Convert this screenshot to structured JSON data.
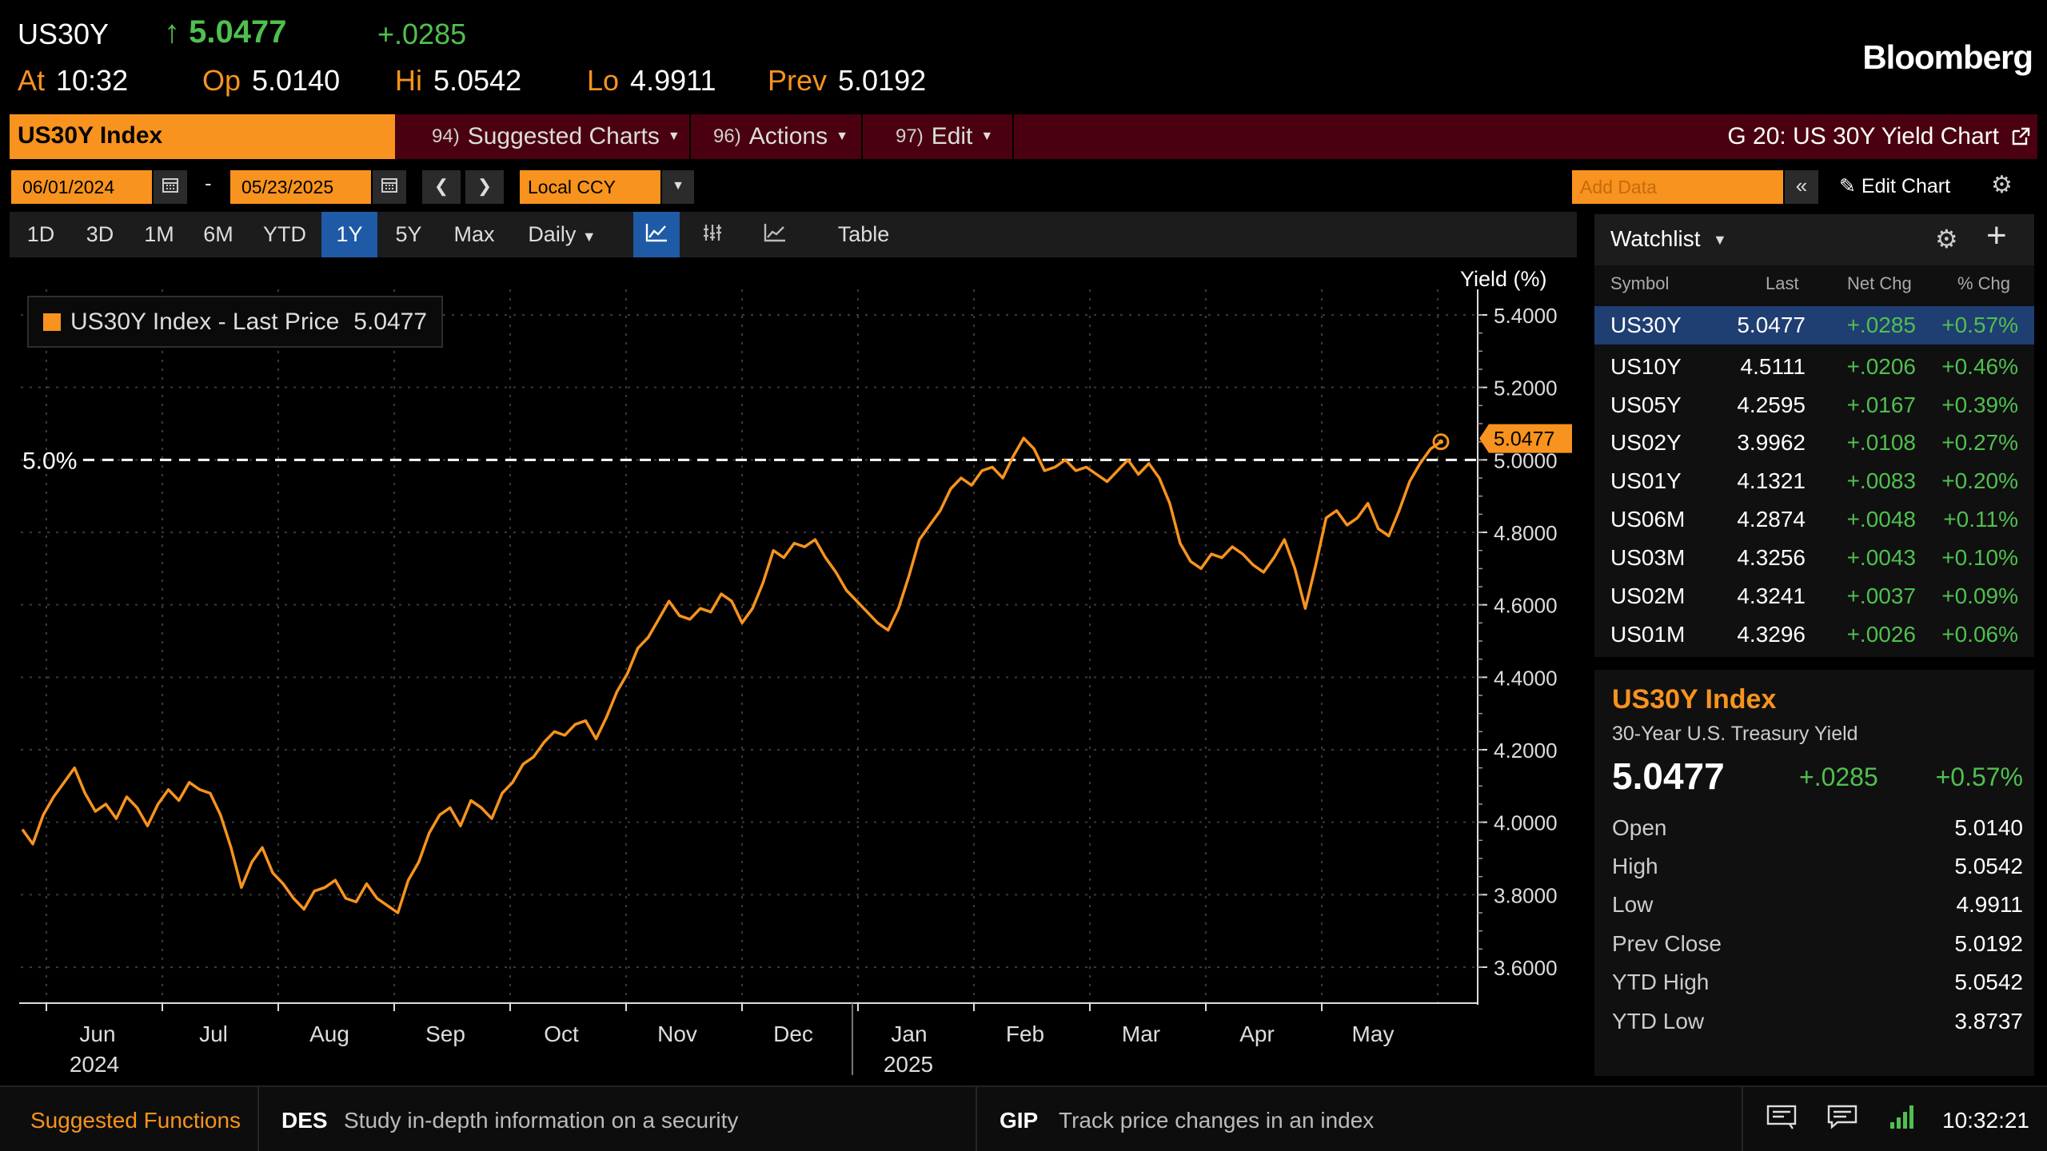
{
  "header": {
    "ticker": "US30Y",
    "price": "5.0477",
    "change": "+.0285",
    "at_label": "At",
    "at_value": "10:32",
    "op_label": "Op",
    "op_value": "5.0140",
    "hi_label": "Hi",
    "hi_value": "5.0542",
    "lo_label": "Lo",
    "lo_value": "4.9911",
    "prev_label": "Prev",
    "prev_value": "5.0192",
    "brand": "Bloomberg"
  },
  "function_bar": {
    "title": "US30Y Index",
    "suggested_num": "94)",
    "suggested_label": "Suggested Charts",
    "actions_num": "96)",
    "actions_label": "Actions",
    "edit_num": "97)",
    "edit_label": "Edit",
    "right_label": "G 20: US 30Y Yield Chart"
  },
  "controls": {
    "start_date": "06/01/2024",
    "end_date": "05/23/2025",
    "dash": "-",
    "currency": "Local CCY",
    "add_data_placeholder": "Add Data",
    "edit_chart": "Edit Chart"
  },
  "periods": [
    "1D",
    "3D",
    "1M",
    "6M",
    "YTD",
    "1Y",
    "5Y",
    "Max"
  ],
  "active_period": "1Y",
  "frequency": "Daily",
  "table_label": "Table",
  "legend": {
    "label": "US30Y Index - Last Price",
    "value": "5.0477"
  },
  "chart_data": {
    "type": "line",
    "title": "",
    "ylabel": "Yield (%)",
    "ylim": [
      3.5,
      5.45
    ],
    "yticks": [
      "5.4000",
      "5.2000",
      "5.0000",
      "4.8000",
      "4.6000",
      "4.4000",
      "4.2000",
      "4.0000",
      "3.8000",
      "3.6000"
    ],
    "months": [
      "Jun",
      "Jul",
      "Aug",
      "Sep",
      "Oct",
      "Nov",
      "Dec",
      "Jan",
      "Feb",
      "Mar",
      "Apr",
      "May"
    ],
    "years": [
      "2024",
      "2025"
    ],
    "reference_line": {
      "value": 5.0,
      "label": "5.0%"
    },
    "last_value_label": "5.0477",
    "series": [
      {
        "values": [
          3.98,
          3.94,
          4.02,
          4.07,
          4.11,
          4.15,
          4.08,
          4.03,
          4.05,
          4.01,
          4.07,
          4.04,
          3.99,
          4.05,
          4.09,
          4.06,
          4.11,
          4.09,
          4.08,
          4.02,
          3.93,
          3.82,
          3.89,
          3.93,
          3.86,
          3.83,
          3.79,
          3.76,
          3.81,
          3.82,
          3.84,
          3.79,
          3.78,
          3.83,
          3.79,
          3.77,
          3.75,
          3.84,
          3.89,
          3.97,
          4.02,
          4.04,
          3.99,
          4.06,
          4.04,
          4.01,
          4.08,
          4.11,
          4.16,
          4.18,
          4.22,
          4.25,
          4.24,
          4.27,
          4.28,
          4.23,
          4.29,
          4.36,
          4.41,
          4.48,
          4.51,
          4.56,
          4.61,
          4.57,
          4.56,
          4.59,
          4.58,
          4.63,
          4.61,
          4.55,
          4.59,
          4.66,
          4.75,
          4.73,
          4.77,
          4.76,
          4.78,
          4.73,
          4.69,
          4.64,
          4.61,
          4.58,
          4.55,
          4.53,
          4.59,
          4.68,
          4.78,
          4.82,
          4.86,
          4.92,
          4.95,
          4.93,
          4.97,
          4.98,
          4.95,
          5.01,
          5.06,
          5.03,
          4.97,
          4.98,
          5.0,
          4.97,
          4.98,
          4.96,
          4.94,
          4.97,
          5.0,
          4.96,
          4.99,
          4.95,
          4.88,
          4.77,
          4.72,
          4.7,
          4.74,
          4.73,
          4.76,
          4.74,
          4.71,
          4.69,
          4.73,
          4.78,
          4.7,
          4.59,
          4.71,
          4.84,
          4.86,
          4.82,
          4.84,
          4.88,
          4.81,
          4.79,
          4.86,
          4.94,
          4.99,
          5.03,
          5.05
        ]
      }
    ]
  },
  "watchlist": {
    "title": "Watchlist",
    "columns": [
      "Symbol",
      "Last",
      "Net Chg",
      "% Chg"
    ],
    "rows": [
      {
        "symbol": "US30Y",
        "last": "5.0477",
        "net": "+.0285",
        "pct": "+0.57%"
      },
      {
        "symbol": "US10Y",
        "last": "4.5111",
        "net": "+.0206",
        "pct": "+0.46%"
      },
      {
        "symbol": "US05Y",
        "last": "4.2595",
        "net": "+.0167",
        "pct": "+0.39%"
      },
      {
        "symbol": "US02Y",
        "last": "3.9962",
        "net": "+.0108",
        "pct": "+0.27%"
      },
      {
        "symbol": "US01Y",
        "last": "4.1321",
        "net": "+.0083",
        "pct": "+0.20%"
      },
      {
        "symbol": "US06M",
        "last": "4.2874",
        "net": "+.0048",
        "pct": "+0.11%"
      },
      {
        "symbol": "US03M",
        "last": "4.3256",
        "net": "+.0043",
        "pct": "+0.10%"
      },
      {
        "symbol": "US02M",
        "last": "4.3241",
        "net": "+.0037",
        "pct": "+0.09%"
      },
      {
        "symbol": "US01M",
        "last": "4.3296",
        "net": "+.0026",
        "pct": "+0.06%"
      }
    ]
  },
  "quote_panel": {
    "title": "US30Y Index",
    "description": "30-Year U.S. Treasury Yield",
    "price": "5.0477",
    "change": "+.0285",
    "pct": "+0.57%",
    "stats": [
      {
        "label": "Open",
        "value": "5.0140"
      },
      {
        "label": "High",
        "value": "5.0542"
      },
      {
        "label": "Low",
        "value": "4.9911"
      },
      {
        "label": "Prev Close",
        "value": "5.0192"
      },
      {
        "label": "YTD High",
        "value": "5.0542"
      },
      {
        "label": "YTD Low",
        "value": "3.8737"
      }
    ]
  },
  "bottom_bar": {
    "suggested": "Suggested Functions",
    "fn1_code": "DES",
    "fn1_desc": "Study in-depth information on a security",
    "fn2_code": "GIP",
    "fn2_desc": "Track price changes in an index",
    "time": "10:32:21"
  },
  "colors": {
    "orange": "#f7931e",
    "green": "#4fc04f",
    "blue": "#1f5aa6",
    "maroon": "#4a0010"
  }
}
